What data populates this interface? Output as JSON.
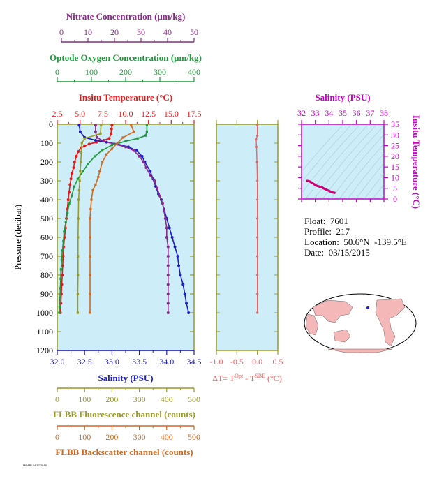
{
  "colors": {
    "nitrate": "#8b2a8b",
    "oxygen": "#1e9a3a",
    "temperature": "#e81818",
    "salinity": "#1c1ccc",
    "fluorescence": "#9a9a28",
    "backscatter": "#d2691e",
    "dt": "#f06060",
    "ts_axis": "#cc00cc",
    "plot_bg": "#cdeef8"
  },
  "axes": {
    "nitrate": {
      "title": "Nitrate Concentration (μm/kg)",
      "ticks": [
        "0",
        "10",
        "20",
        "30",
        "40",
        "50"
      ]
    },
    "oxygen": {
      "title": "Optode Oxygen Concentration (μm/kg)",
      "ticks": [
        "0",
        "100",
        "200",
        "300",
        "400"
      ]
    },
    "temperature": {
      "title": "Insitu Temperature (°C)",
      "ticks": [
        "2.5",
        "5.0",
        "7.5",
        "10.0",
        "12.5",
        "15.0",
        "17.5"
      ]
    },
    "salinity": {
      "title": "Salinity (PSU)",
      "ticks": [
        "32.0",
        "32.5",
        "33.0",
        "33.5",
        "34.0",
        "34.5"
      ]
    },
    "fluorescence": {
      "title": "FLBB Fluorescence channel (counts)",
      "ticks": [
        "0",
        "100",
        "200",
        "300",
        "400",
        "500"
      ]
    },
    "backscatter": {
      "title": "FLBB Backscatter channel (counts)",
      "ticks": [
        "0",
        "100",
        "200",
        "300",
        "400",
        "500"
      ]
    },
    "pressure": {
      "title": "Pressure (decibar)",
      "ticks": [
        "0",
        "100",
        "200",
        "300",
        "400",
        "500",
        "600",
        "700",
        "800",
        "900",
        "1000",
        "1100",
        "1200"
      ]
    },
    "dt": {
      "title": "ΔT= T",
      "sup1": "Opt",
      "mid": " - T",
      "sup2": "SBE",
      "end": " (°C)",
      "ticks": [
        "-1.0",
        "-0.5",
        "0.0",
        "0.5"
      ]
    },
    "ts_salinity": {
      "title": "Salinity (PSU)",
      "ticks": [
        "32",
        "33",
        "34",
        "35",
        "36",
        "37",
        "38"
      ]
    },
    "ts_temperature": {
      "title": "Insitu Temperature (°C)",
      "ticks": [
        "0",
        "5",
        "10",
        "15",
        "20",
        "25",
        "30",
        "35"
      ]
    }
  },
  "info": {
    "float": "Float:  7601",
    "profile": "Profile:  217",
    "location": "Location:  50.6°N  -139.5°E",
    "date": "Date:  03/15/2015"
  },
  "footer": "MBARI 04/17/2015",
  "chart_data": [
    {
      "type": "line",
      "y_axis": "pressure",
      "ylim": [
        1200,
        0
      ],
      "series": [
        {
          "key": "temperature",
          "xlim": [
            2.5,
            17.5
          ],
          "points": [
            [
              8.5,
              5
            ],
            [
              8.45,
              25
            ],
            [
              8.4,
              50
            ],
            [
              8.2,
              75
            ],
            [
              7.6,
              85
            ],
            [
              6.8,
              95
            ],
            [
              6.0,
              105
            ],
            [
              5.5,
              115
            ],
            [
              5.1,
              125
            ],
            [
              4.8,
              145
            ],
            [
              4.6,
              170
            ],
            [
              4.4,
              200
            ],
            [
              4.3,
              230
            ],
            [
              4.1,
              260
            ],
            [
              4.0,
              290
            ],
            [
              3.9,
              320
            ],
            [
              3.8,
              360
            ],
            [
              3.7,
              400
            ],
            [
              3.6,
              450
            ],
            [
              3.5,
              500
            ],
            [
              3.4,
              550
            ],
            [
              3.3,
              600
            ],
            [
              3.2,
              650
            ],
            [
              3.15,
              700
            ],
            [
              3.1,
              750
            ],
            [
              3.05,
              800
            ],
            [
              3.0,
              850
            ],
            [
              2.95,
              900
            ],
            [
              2.9,
              950
            ],
            [
              2.85,
              1000
            ]
          ]
        },
        {
          "key": "salinity",
          "xlim": [
            32.0,
            34.5
          ],
          "points": [
            [
              32.4,
              5
            ],
            [
              32.42,
              40
            ],
            [
              32.5,
              70
            ],
            [
              32.7,
              85
            ],
            [
              32.9,
              95
            ],
            [
              33.1,
              105
            ],
            [
              33.3,
              120
            ],
            [
              33.45,
              140
            ],
            [
              33.55,
              170
            ],
            [
              33.6,
              200
            ],
            [
              33.7,
              250
            ],
            [
              33.75,
              290
            ],
            [
              33.8,
              330
            ],
            [
              33.85,
              370
            ],
            [
              33.9,
              400
            ],
            [
              33.95,
              450
            ],
            [
              34.0,
              500
            ],
            [
              34.05,
              550
            ],
            [
              34.1,
              600
            ],
            [
              34.15,
              650
            ],
            [
              34.2,
              700
            ],
            [
              34.22,
              750
            ],
            [
              34.25,
              800
            ],
            [
              34.3,
              850
            ],
            [
              34.33,
              900
            ],
            [
              34.36,
              950
            ],
            [
              34.4,
              1000
            ]
          ]
        },
        {
          "key": "nitrate",
          "xlim": [
            0,
            50
          ],
          "points": [
            [
              14,
              5
            ],
            [
              14,
              40
            ],
            [
              14.5,
              70
            ],
            [
              17,
              90
            ],
            [
              21,
              105
            ],
            [
              25,
              120
            ],
            [
              28,
              140
            ],
            [
              30,
              170
            ],
            [
              31.5,
              200
            ],
            [
              32.5,
              230
            ],
            [
              34,
              270
            ],
            [
              35.5,
              300
            ],
            [
              36.5,
              340
            ],
            [
              37.5,
              380
            ],
            [
              38.5,
              420
            ],
            [
              39,
              460
            ],
            [
              39.5,
              500
            ],
            [
              40,
              550
            ],
            [
              40,
              600
            ],
            [
              40.5,
              650
            ],
            [
              40.5,
              700
            ],
            [
              40.5,
              750
            ],
            [
              40.5,
              800
            ],
            [
              40.5,
              850
            ],
            [
              40.5,
              900
            ],
            [
              40.5,
              950
            ],
            [
              40.5,
              1000
            ]
          ]
        },
        {
          "key": "oxygen",
          "xlim": [
            0,
            400
          ],
          "points": [
            [
              262,
              5
            ],
            [
              262,
              40
            ],
            [
              258,
              60
            ],
            [
              235,
              75
            ],
            [
              200,
              90
            ],
            [
              160,
              110
            ],
            [
              130,
              140
            ],
            [
              110,
              170
            ],
            [
              90,
              210
            ],
            [
              75,
              250
            ],
            [
              60,
              290
            ],
            [
              50,
              330
            ],
            [
              42,
              380
            ],
            [
              35,
              420
            ],
            [
              30,
              470
            ],
            [
              25,
              520
            ],
            [
              20,
              570
            ],
            [
              18,
              620
            ],
            [
              15,
              670
            ],
            [
              13,
              720
            ],
            [
              11,
              770
            ],
            [
              10,
              820
            ],
            [
              9,
              870
            ],
            [
              8,
              920
            ],
            [
              7,
              970
            ],
            [
              6,
              1000
            ]
          ]
        },
        {
          "key": "fluorescence",
          "xlim": [
            0,
            500
          ],
          "points": [
            [
              160,
              5
            ],
            [
              158,
              50
            ],
            [
              100,
              75
            ],
            [
              90,
              100
            ],
            [
              88,
              150
            ],
            [
              86,
              200
            ],
            [
              84,
              250
            ],
            [
              82,
              300
            ],
            [
              80,
              350
            ],
            [
              78,
              400
            ],
            [
              77,
              500
            ],
            [
              76,
              600
            ],
            [
              76,
              700
            ],
            [
              76,
              800
            ],
            [
              75,
              900
            ],
            [
              75,
              1000
            ]
          ]
        },
        {
          "key": "backscatter",
          "xlim": [
            0,
            500
          ],
          "points": [
            [
              270,
              5
            ],
            [
              280,
              40
            ],
            [
              240,
              70
            ],
            [
              220,
              100
            ],
            [
              200,
              130
            ],
            [
              180,
              160
            ],
            [
              165,
              200
            ],
            [
              155,
              250
            ],
            [
              150,
              280
            ],
            [
              140,
              320
            ],
            [
              130,
              350
            ],
            [
              125,
              400
            ],
            [
              122,
              450
            ],
            [
              120,
              500
            ],
            [
              120,
              600
            ],
            [
              120,
              700
            ],
            [
              120,
              800
            ],
            [
              120,
              900
            ],
            [
              120,
              1000
            ]
          ]
        },
        {
          "key": "dt",
          "xlim": [
            -1.0,
            0.5
          ],
          "points": [
            [
              0.0,
              5
            ],
            [
              0.0,
              60
            ],
            [
              -0.03,
              80
            ],
            [
              -0.02,
              120
            ],
            [
              -0.01,
              200
            ],
            [
              0.0,
              300
            ],
            [
              0.0,
              400
            ],
            [
              0.0,
              500
            ],
            [
              0.0,
              600
            ],
            [
              0.0,
              700
            ],
            [
              0.0,
              800
            ],
            [
              0.0,
              900
            ],
            [
              0.0,
              1000
            ]
          ]
        }
      ]
    },
    {
      "type": "scatter",
      "xlabel": "Salinity (PSU)",
      "ylabel": "Insitu Temperature (°C)",
      "xlim": [
        32,
        38
      ],
      "ylim": [
        0,
        35
      ],
      "x": [
        32.4,
        32.5,
        32.6,
        32.7,
        32.8,
        32.9,
        33.0,
        33.1,
        33.2,
        33.3,
        33.4,
        33.5,
        33.6,
        33.7,
        33.8,
        33.9,
        34.0,
        34.1,
        34.2,
        34.3,
        34.4
      ],
      "y": [
        8.5,
        8.4,
        8.2,
        7.8,
        7.4,
        7.0,
        6.5,
        6.2,
        6.0,
        5.8,
        5.6,
        5.4,
        5.0,
        4.7,
        4.4,
        4.1,
        3.8,
        3.5,
        3.3,
        3.0,
        2.9
      ]
    }
  ]
}
